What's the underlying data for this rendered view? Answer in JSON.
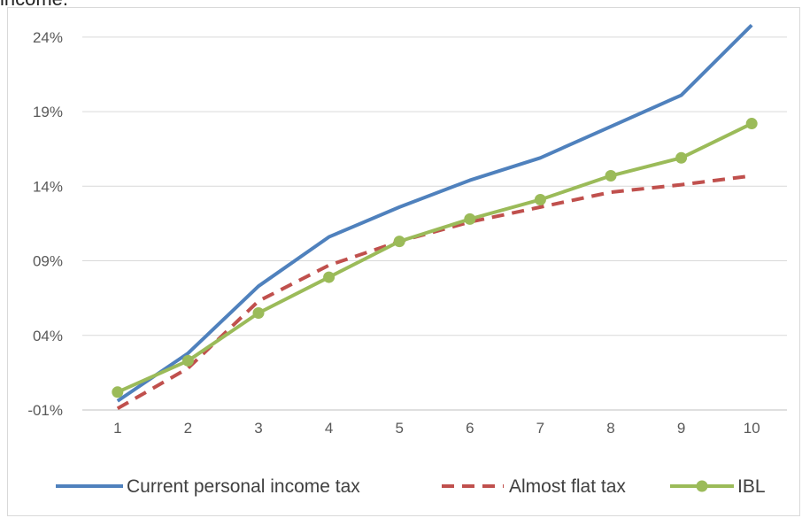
{
  "page_title_fragment": "income.",
  "chart_data": {
    "type": "line",
    "title": "",
    "xlabel": "",
    "ylabel": "",
    "categories": [
      "1",
      "2",
      "3",
      "4",
      "5",
      "6",
      "7",
      "8",
      "9",
      "10"
    ],
    "ylim": [
      -1,
      25
    ],
    "y_ticks": [
      -1,
      4,
      9,
      14,
      19,
      24
    ],
    "y_tick_labels": [
      "-01%",
      "04%",
      "09%",
      "14%",
      "19%",
      "24%"
    ],
    "grid": true,
    "legend_position": "bottom",
    "series": [
      {
        "name": "Current personal income tax",
        "color": "#4f81bd",
        "style": "solid",
        "markers": false,
        "values": [
          -0.4,
          2.8,
          7.3,
          10.6,
          12.6,
          14.4,
          15.9,
          18.0,
          20.1,
          24.8
        ]
      },
      {
        "name": "Almost flat tax",
        "color": "#c0504d",
        "style": "dashed",
        "markers": false,
        "values": [
          -0.9,
          1.8,
          6.3,
          8.7,
          10.3,
          11.6,
          12.6,
          13.6,
          14.1,
          14.7
        ]
      },
      {
        "name": "IBL",
        "color": "#9bbb59",
        "style": "solid",
        "markers": true,
        "values": [
          0.2,
          2.3,
          5.5,
          7.9,
          10.3,
          11.8,
          13.1,
          14.7,
          15.9,
          18.2
        ]
      }
    ]
  }
}
